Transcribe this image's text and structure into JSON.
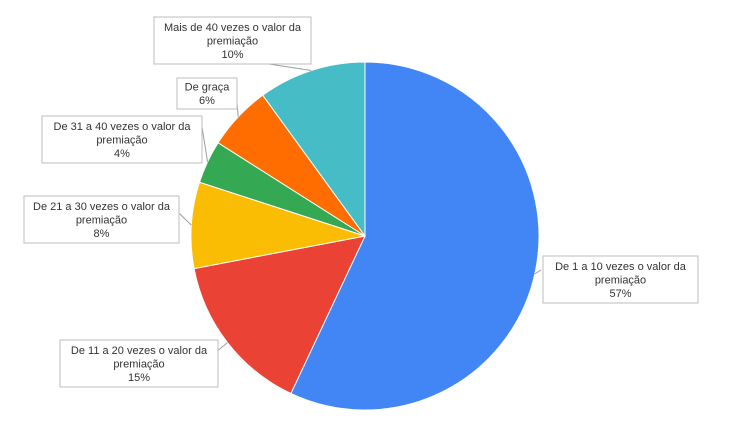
{
  "chart_data": {
    "type": "pie",
    "title": "",
    "slices": [
      {
        "lines": [
          "De 1 a 10 vezes  o valor da",
          "premiação"
        ],
        "value": 57,
        "pct_label": "57%",
        "color": "#4285f4"
      },
      {
        "lines": [
          "De 11 a 20 vezes  o valor da",
          "premiação"
        ],
        "value": 15,
        "pct_label": "15%",
        "color": "#ea4335"
      },
      {
        "lines": [
          "De 21 a 30 vezes  o valor da",
          "premiação"
        ],
        "value": 8,
        "pct_label": "8%",
        "color": "#fbbc04"
      },
      {
        "lines": [
          "De 31 a 40 vezes  o valor da",
          "premiação"
        ],
        "value": 4,
        "pct_label": "4%",
        "color": "#34a853"
      },
      {
        "lines": [
          "De graça"
        ],
        "value": 6,
        "pct_label": "6%",
        "color": "#ff6d01"
      },
      {
        "lines": [
          "Mais de 40 vezes  o valor da",
          "premiação"
        ],
        "value": 10,
        "pct_label": "10%",
        "color": "#46bdc6"
      }
    ],
    "label_style": "callouts with leader lines"
  }
}
